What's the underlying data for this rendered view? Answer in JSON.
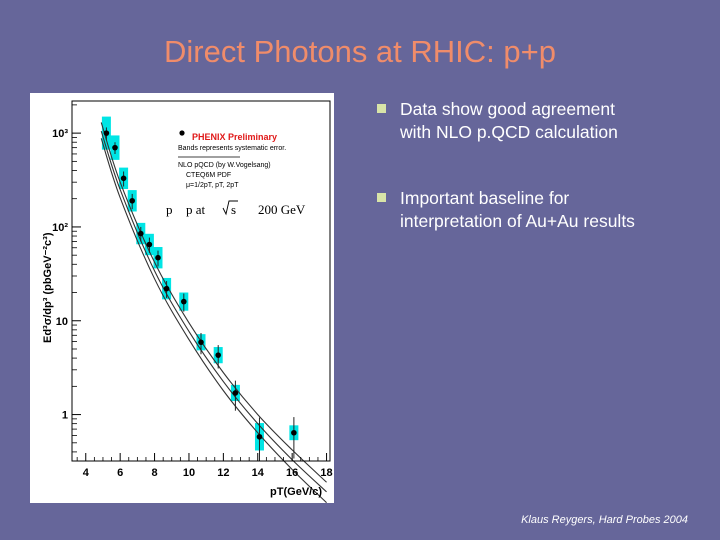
{
  "slide": {
    "title": "Direct Photons at RHIC: p+p",
    "bullets": [
      {
        "line1": "Data show good agreement",
        "line2": "with NLO p.QCD calculation"
      },
      {
        "line1": "Important baseline for",
        "line2": "interpretation of Au+Au results"
      }
    ],
    "footer": "Klaus Reygers, Hard Probes 2004",
    "colors": {
      "background": "#66669a",
      "title": "#f08c6a",
      "bullet_marker": "#d8e4a8",
      "data_band": "#00e5e5"
    }
  },
  "chart_data": {
    "type": "scatter",
    "scale_y": "log",
    "xlim": [
      3.2,
      18.2
    ],
    "ylim": [
      0.32,
      2200
    ],
    "x_ticks": [
      "4",
      "6",
      "8",
      "10",
      "12",
      "14",
      "16",
      "18"
    ],
    "y_ticks": [
      "1",
      "10",
      "10²",
      "10³"
    ],
    "ylabel": "Ed³σ/dp³ (pbGeV⁻²c³)",
    "xlabel": "pT(GeV/c)",
    "legend": {
      "title": "PHENIX Preliminary",
      "note": "Bands represents systematic error.",
      "theory_line1": "NLO pQCD (by W.Vogelsang)",
      "theory_line2": "CTEQ6M PDF",
      "theory_line3": "μ=1/2pT, pT, 2pT",
      "system_p1": "p",
      "system_p2": "p  at",
      "system_s": "s",
      "system_energy": "200 GeV"
    },
    "series": [
      {
        "x": [
          5.2,
          5.7,
          6.2,
          6.7,
          7.2,
          7.7,
          8.2,
          8.7,
          9.7,
          10.7,
          11.7,
          12.7,
          14.1,
          16.1
        ],
        "y": [
          1000,
          700,
          330,
          190,
          85,
          65,
          47,
          22,
          16,
          5.9,
          4.3,
          1.7,
          0.58,
          0.64
        ],
        "err_low": [
          150,
          100,
          60,
          35,
          15,
          12,
          9,
          4.5,
          3.5,
          1.5,
          1.2,
          0.6,
          0.35,
          0.3
        ],
        "err_high": [
          150,
          100,
          60,
          35,
          15,
          12,
          9,
          4.5,
          3.5,
          1.5,
          1.2,
          0.6,
          0.35,
          0.3
        ],
        "band": [
          1.5,
          1.35,
          1.3,
          1.3,
          1.3,
          1.3,
          1.3,
          1.3,
          1.25,
          1.22,
          1.22,
          1.22,
          1.4,
          1.2
        ]
      }
    ],
    "theory_curves": [
      {
        "name": "μ=1/2pT",
        "x": [
          4.9,
          6,
          8,
          10,
          12,
          14,
          16,
          18
        ],
        "y": [
          1300,
          300,
          42,
          9.5,
          2.8,
          1.0,
          0.42,
          0.19
        ]
      },
      {
        "name": "μ=pT",
        "x": [
          4.9,
          6,
          8,
          10,
          12,
          14,
          16,
          18
        ],
        "y": [
          1050,
          250,
          34,
          7.7,
          2.25,
          0.8,
          0.33,
          0.15
        ]
      },
      {
        "name": "μ=2pT",
        "x": [
          4.9,
          6,
          8,
          10,
          12,
          14,
          16,
          18
        ],
        "y": [
          880,
          205,
          28,
          6.3,
          1.8,
          0.64,
          0.26,
          0.115
        ]
      }
    ]
  }
}
